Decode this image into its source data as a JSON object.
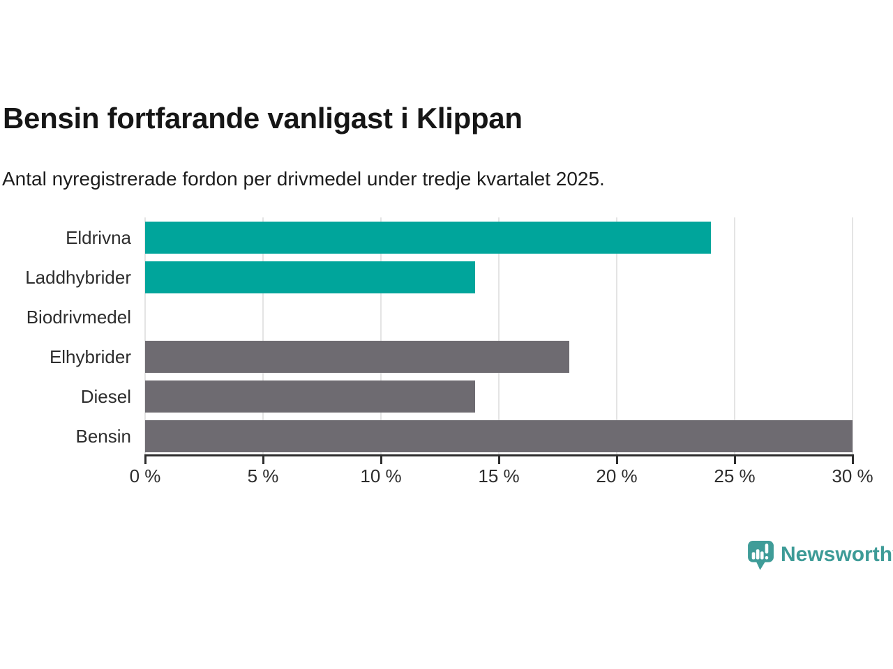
{
  "header": {
    "title": "Bensin fortfarande vanligast i Klippan",
    "subtitle": "Antal nyregistrerade fordon per drivmedel under tredje kvartalet 2025."
  },
  "chart_data": {
    "type": "bar",
    "orientation": "horizontal",
    "categories": [
      "Eldrivna",
      "Laddhybrider",
      "Biodrivmedel",
      "Elhybrider",
      "Diesel",
      "Bensin"
    ],
    "values": [
      24,
      14,
      0,
      18,
      14,
      30
    ],
    "bar_colors": [
      "#00a59b",
      "#00a59b",
      "#00a59b",
      "#6e6b71",
      "#6e6b71",
      "#6e6b71"
    ],
    "highlight_color": "#00a59b",
    "default_color": "#6e6b71",
    "xlim": [
      0,
      30
    ],
    "x_ticks": [
      0,
      5,
      10,
      15,
      20,
      25,
      30
    ],
    "x_tick_labels": [
      "0 %",
      "5 %",
      "10 %",
      "15 %",
      "20 %",
      "25 %",
      "30 %"
    ],
    "grid": true,
    "gridline_color": "#e4e4e4",
    "axis_color": "#2e2e2e",
    "legend": "none"
  },
  "footer": {
    "logo_text": "Newsworthy",
    "logo_color": "#3d9b97",
    "logo_icon": "newsworthy-speech-bubble-chart-icon"
  }
}
